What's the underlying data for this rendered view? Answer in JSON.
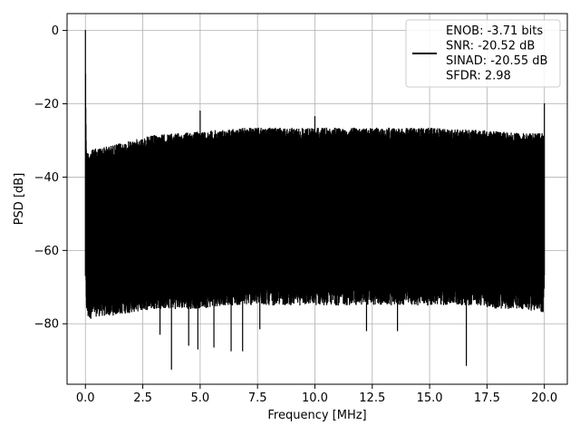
{
  "chart_data": {
    "type": "line",
    "xlabel": "Frequency [MHz]",
    "ylabel": "PSD [dB]",
    "xlim": [
      -0.8,
      21.0
    ],
    "ylim": [
      -96.5,
      4.6
    ],
    "grid": true,
    "x_ticks": [
      0.0,
      2.5,
      5.0,
      7.5,
      10.0,
      12.5,
      15.0,
      17.5,
      20.0
    ],
    "x_tick_labels": [
      "0.0",
      "2.5",
      "5.0",
      "7.5",
      "10.0",
      "12.5",
      "15.0",
      "17.5",
      "20.0"
    ],
    "y_ticks": [
      0,
      -20,
      -40,
      -60,
      -80
    ],
    "y_tick_labels": [
      "0",
      "−20",
      "−40",
      "−60",
      "−80"
    ],
    "legend": {
      "placement": "top-right",
      "lines": [
        "ENOB: -3.71 bits",
        "SNR: -20.52 dB",
        "SINAD: -20.55 dB",
        "SFDR: 2.98"
      ]
    },
    "series": [
      {
        "color": "#000000",
        "x": [
          0.0,
          0.02,
          0.05,
          0.1,
          0.5,
          1.0,
          2.0,
          3.0,
          4.0,
          5.0,
          6.0,
          7.0,
          8.0,
          9.0,
          10.0,
          11.0,
          12.0,
          13.0,
          14.0,
          15.0,
          16.0,
          17.0,
          18.0,
          19.0,
          19.95,
          20.0
        ],
        "upper_envelope_db": [
          0,
          -24,
          -33,
          -33,
          -32,
          -31.5,
          -30,
          -28.5,
          -28,
          -27.5,
          -27,
          -26.5,
          -26.5,
          -26.5,
          -26.5,
          -26.5,
          -26.5,
          -26.5,
          -26.5,
          -26.5,
          -27,
          -27,
          -27.5,
          -28,
          -28,
          -28
        ],
        "typical_floor_db": [
          -40,
          -68,
          -74,
          -76,
          -75,
          -75,
          -74,
          -73,
          -73,
          -73,
          -72,
          -72,
          -72,
          -72,
          -72,
          -72,
          -72,
          -72,
          -72,
          -72,
          -72,
          -72,
          -73,
          -73,
          -74,
          -68
        ],
        "peaks": [
          {
            "x": 0.0,
            "y": 0
          },
          {
            "x": 5.0,
            "y": -22
          },
          {
            "x": 10.0,
            "y": -23.5
          },
          {
            "x": 20.0,
            "y": -20
          }
        ],
        "notable_minima": [
          {
            "x": 3.25,
            "y": -83
          },
          {
            "x": 3.75,
            "y": -92.5
          },
          {
            "x": 4.5,
            "y": -86
          },
          {
            "x": 4.9,
            "y": -87
          },
          {
            "x": 5.6,
            "y": -86.5
          },
          {
            "x": 6.35,
            "y": -87.5
          },
          {
            "x": 6.85,
            "y": -87.5
          },
          {
            "x": 7.6,
            "y": -81.5
          },
          {
            "x": 12.25,
            "y": -82
          },
          {
            "x": 13.6,
            "y": -82
          },
          {
            "x": 16.6,
            "y": -91.5
          }
        ]
      }
    ]
  }
}
